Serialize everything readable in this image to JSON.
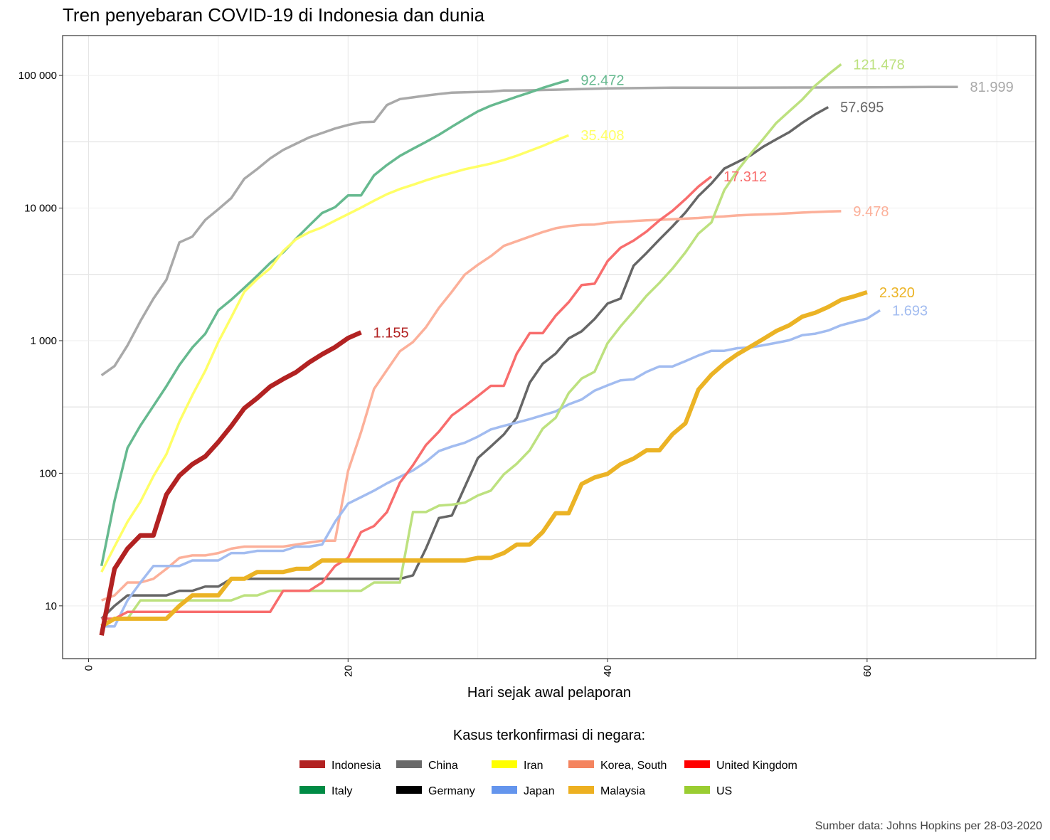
{
  "chart_data": {
    "type": "line",
    "title": "Tren penyebaran COVID-19 di Indonesia dan dunia",
    "xlabel": "Hari sejak awal pelaporan",
    "ylabel": "",
    "xlim": [
      -2,
      73
    ],
    "ylim": [
      4,
      200000
    ],
    "y_scale": "log",
    "grid": true,
    "x_ticks": [
      0,
      20,
      40,
      60
    ],
    "x_tick_labels": [
      "0",
      "20",
      "40",
      "60"
    ],
    "y_ticks": [
      10,
      100,
      1000,
      10000,
      100000
    ],
    "y_tick_labels": [
      "10",
      "100",
      "1 000",
      "10 000",
      "100 000"
    ],
    "legend_title": "Kasus terkonfirmasi di negara:",
    "legend_position": "bottom",
    "caption": "Sumber data: Johns Hopkins per 28-03-2020",
    "legend": [
      {
        "name": "Indonesia",
        "color": "#B22222"
      },
      {
        "name": "China",
        "color": "#696969"
      },
      {
        "name": "Iran",
        "color": "#FFFF00"
      },
      {
        "name": "Korea, South",
        "color": "#F4845F"
      },
      {
        "name": "United Kingdom",
        "color": "#FF0000"
      },
      {
        "name": "Italy",
        "color": "#008B45"
      },
      {
        "name": "Germany",
        "color": "#000000"
      },
      {
        "name": "Japan",
        "color": "#6495ED"
      },
      {
        "name": "Malaysia",
        "color": "#EDB021"
      },
      {
        "name": "US",
        "color": "#9ACD32"
      }
    ],
    "series": [
      {
        "name": "China",
        "color": "#a9a9a9",
        "width": 3.5,
        "end_label": "81.999",
        "x": [
          1,
          2,
          3,
          4,
          5,
          6,
          7,
          8,
          9,
          10,
          11,
          12,
          13,
          14,
          15,
          16,
          17,
          18,
          19,
          20,
          21,
          22,
          23,
          24,
          25,
          26,
          27,
          28,
          29,
          30,
          31,
          32,
          33,
          34,
          35,
          36,
          37,
          38,
          40,
          45,
          50,
          55,
          60,
          65,
          67
        ],
        "y": [
          548,
          643,
          920,
          1406,
          2075,
          2877,
          5509,
          6087,
          8141,
          9802,
          11891,
          16630,
          19716,
          23707,
          27440,
          30587,
          34110,
          36814,
          39829,
          42354,
          44386,
          44759,
          59895,
          66358,
          68413,
          70513,
          72434,
          74211,
          74619,
          75077,
          75550,
          77001,
          77022,
          77241,
          77754,
          78166,
          78600,
          78928,
          79932,
          80860,
          80921,
          81151,
          81439,
          81897,
          81999
        ]
      },
      {
        "name": "Italy",
        "color": "#66b98f",
        "width": 3.5,
        "end_label": "92.472",
        "x": [
          1,
          2,
          3,
          4,
          5,
          6,
          7,
          8,
          9,
          10,
          11,
          12,
          13,
          14,
          15,
          16,
          17,
          18,
          19,
          20,
          21,
          22,
          23,
          24,
          25,
          26,
          27,
          28,
          29,
          30,
          31,
          32,
          33,
          34,
          35,
          36,
          37
        ],
        "y": [
          20,
          62,
          155,
          229,
          322,
          453,
          655,
          888,
          1128,
          1694,
          2036,
          2502,
          3089,
          3858,
          4636,
          5883,
          7375,
          9172,
          10149,
          12462,
          12462,
          17660,
          21157,
          24747,
          27980,
          31506,
          35713,
          41035,
          47021,
          53578,
          59138,
          63927,
          69176,
          74386,
          80589,
          86498,
          92472
        ]
      },
      {
        "name": "Iran",
        "color": "#ffff66",
        "width": 3.5,
        "end_label": "35.408",
        "x": [
          1,
          2,
          3,
          4,
          5,
          6,
          7,
          8,
          9,
          10,
          11,
          12,
          13,
          14,
          15,
          16,
          17,
          18,
          19,
          20,
          21,
          22,
          23,
          24,
          25,
          26,
          27,
          28,
          29,
          30,
          31,
          32,
          33,
          34,
          35,
          36,
          37
        ],
        "y": [
          18,
          28,
          43,
          61,
          95,
          139,
          245,
          388,
          593,
          978,
          1501,
          2336,
          2922,
          3513,
          4747,
          5823,
          6566,
          7161,
          8042,
          9000,
          10075,
          11364,
          12729,
          13938,
          14991,
          16169,
          17361,
          18407,
          19644,
          20610,
          21638,
          23049,
          24811,
          27017,
          29406,
          32332,
          35408
        ]
      },
      {
        "name": "Germany",
        "color": "#666666",
        "width": 3.5,
        "end_label": "57.695",
        "x": [
          1,
          2,
          3,
          4,
          5,
          6,
          7,
          8,
          9,
          10,
          11,
          12,
          13,
          14,
          15,
          16,
          17,
          18,
          19,
          20,
          21,
          22,
          23,
          24,
          25,
          26,
          27,
          28,
          29,
          30,
          31,
          32,
          33,
          34,
          35,
          36,
          37,
          38,
          39,
          40,
          41,
          42,
          43,
          44,
          45,
          46,
          47,
          48,
          49,
          50,
          51,
          52,
          53,
          54,
          55,
          56,
          57
        ],
        "y": [
          8,
          10,
          12,
          12,
          12,
          12,
          13,
          13,
          14,
          14,
          16,
          16,
          16,
          16,
          16,
          16,
          16,
          16,
          16,
          16,
          16,
          16,
          16,
          16,
          17,
          27,
          46,
          48,
          79,
          130,
          159,
          196,
          262,
          482,
          670,
          799,
          1040,
          1176,
          1457,
          1908,
          2078,
          3675,
          4585,
          5795,
          7272,
          9257,
          12327,
          15320,
          19848,
          22213,
          24873,
          29056,
          32986,
          37323,
          43938,
          50871,
          57695
        ]
      },
      {
        "name": "Korea, South",
        "color": "#fcb09a",
        "width": 3.5,
        "end_label": "9.478",
        "x": [
          1,
          2,
          3,
          4,
          5,
          6,
          7,
          8,
          9,
          10,
          11,
          12,
          13,
          14,
          15,
          16,
          17,
          18,
          19,
          20,
          21,
          22,
          23,
          24,
          25,
          26,
          27,
          28,
          29,
          30,
          31,
          32,
          33,
          34,
          35,
          36,
          37,
          38,
          39,
          40,
          41,
          42,
          43,
          44,
          45,
          46,
          47,
          48,
          49,
          50,
          51,
          52,
          53,
          54,
          55,
          56,
          57,
          58
        ],
        "y": [
          11,
          12,
          15,
          15,
          16,
          19,
          23,
          24,
          24,
          25,
          27,
          28,
          28,
          28,
          28,
          29,
          30,
          31,
          31,
          104,
          204,
          433,
          602,
          833,
          977,
          1261,
          1766,
          2337,
          3150,
          3736,
          4335,
          5186,
          5621,
          6088,
          6593,
          7041,
          7314,
          7478,
          7513,
          7755,
          7869,
          7979,
          8086,
          8162,
          8236,
          8320,
          8413,
          8565,
          8652,
          8799,
          8897,
          8961,
          9037,
          9137,
          9241,
          9332,
          9413,
          9478
        ]
      },
      {
        "name": "Japan",
        "color": "#a2bcf0",
        "width": 3.5,
        "end_label": "1.693",
        "x": [
          1,
          2,
          3,
          4,
          5,
          6,
          7,
          8,
          9,
          10,
          11,
          12,
          13,
          14,
          15,
          16,
          17,
          18,
          19,
          20,
          21,
          22,
          23,
          24,
          25,
          26,
          27,
          28,
          29,
          30,
          31,
          32,
          33,
          34,
          35,
          36,
          37,
          38,
          39,
          40,
          41,
          42,
          43,
          44,
          45,
          46,
          47,
          48,
          49,
          50,
          51,
          52,
          53,
          54,
          55,
          56,
          57,
          58,
          59,
          60,
          61
        ],
        "y": [
          7,
          7,
          11,
          15,
          20,
          20,
          20,
          22,
          22,
          22,
          25,
          25,
          26,
          26,
          26,
          28,
          28,
          29,
          43,
          59,
          66,
          74,
          84,
          94,
          105,
          122,
          147,
          159,
          170,
          189,
          214,
          228,
          241,
          256,
          274,
          293,
          331,
          360,
          420,
          461,
          502,
          511,
          581,
          639,
          639,
          701,
          773,
          839,
          839,
          878,
          889,
          924,
          963,
          1007,
          1101,
          1128,
          1193,
          1307,
          1387,
          1468,
          1693
        ]
      },
      {
        "name": "US",
        "color": "#bde17f",
        "width": 3.5,
        "end_label": "121.478",
        "x": [
          1,
          2,
          3,
          4,
          5,
          6,
          7,
          8,
          9,
          10,
          11,
          12,
          13,
          14,
          15,
          16,
          17,
          18,
          19,
          20,
          21,
          22,
          23,
          24,
          25,
          26,
          27,
          28,
          29,
          30,
          31,
          32,
          33,
          34,
          35,
          36,
          37,
          38,
          39,
          40,
          41,
          42,
          43,
          44,
          45,
          46,
          47,
          48,
          49,
          50,
          51,
          52,
          53,
          54,
          55,
          56,
          57,
          58
        ],
        "y": [
          7,
          8,
          8,
          11,
          11,
          11,
          11,
          11,
          11,
          11,
          11,
          12,
          12,
          13,
          13,
          13,
          13,
          13,
          13,
          13,
          13,
          15,
          15,
          15,
          51,
          51,
          57,
          58,
          60,
          68,
          74,
          98,
          118,
          149,
          217,
          262,
          402,
          518,
          583,
          959,
          1281,
          1663,
          2179,
          2727,
          3499,
          4632,
          6421,
          7786,
          13680,
          19101,
          25493,
          33276,
          43847,
          53740,
          65778,
          83836,
          101657,
          121478
        ]
      },
      {
        "name": "United Kingdom",
        "color": "#f86d6d",
        "width": 3.5,
        "end_label": "17.312",
        "x": [
          1,
          2,
          3,
          4,
          5,
          6,
          7,
          8,
          9,
          10,
          11,
          12,
          13,
          14,
          15,
          16,
          17,
          18,
          19,
          20,
          21,
          22,
          23,
          24,
          25,
          26,
          27,
          28,
          29,
          30,
          31,
          32,
          33,
          34,
          35,
          36,
          37,
          38,
          39,
          40,
          41,
          42,
          43,
          44,
          45,
          46,
          47,
          48
        ],
        "y": [
          8,
          8,
          9,
          9,
          9,
          9,
          9,
          9,
          9,
          9,
          9,
          9,
          9,
          9,
          13,
          13,
          13,
          15,
          20,
          23,
          36,
          40,
          51,
          85,
          115,
          163,
          206,
          273,
          321,
          382,
          456,
          456,
          798,
          1140,
          1140,
          1543,
          1950,
          2626,
          2689,
          3983,
          5018,
          5683,
          6650,
          8077,
          9529,
          11658,
          14543,
          17312
        ]
      },
      {
        "name": "Malaysia",
        "color": "#ebb325",
        "width": 6,
        "end_label": "2.320",
        "x": [
          1,
          2,
          3,
          4,
          5,
          6,
          7,
          8,
          9,
          10,
          11,
          12,
          13,
          14,
          15,
          16,
          17,
          18,
          19,
          20,
          21,
          22,
          23,
          24,
          25,
          26,
          27,
          28,
          29,
          30,
          31,
          32,
          33,
          34,
          35,
          36,
          37,
          38,
          39,
          40,
          41,
          42,
          43,
          44,
          45,
          46,
          47,
          48,
          49,
          50,
          51,
          52,
          53,
          54,
          55,
          56,
          57,
          58,
          59,
          60
        ],
        "y": [
          7,
          8,
          8,
          8,
          8,
          8,
          10,
          12,
          12,
          12,
          16,
          16,
          18,
          18,
          18,
          19,
          19,
          22,
          22,
          22,
          22,
          22,
          22,
          22,
          22,
          22,
          22,
          22,
          22,
          23,
          23,
          25,
          29,
          29,
          36,
          50,
          50,
          83,
          93,
          99,
          117,
          129,
          149,
          149,
          197,
          238,
          428,
          553,
          673,
          790,
          900,
          1030,
          1183,
          1306,
          1518,
          1624,
          1796,
          2031,
          2161,
          2320
        ]
      },
      {
        "name": "Indonesia",
        "color": "#b22222",
        "width": 6.5,
        "end_label": "1.155",
        "x": [
          1,
          2,
          3,
          4,
          5,
          6,
          7,
          8,
          9,
          10,
          11,
          12,
          13,
          14,
          15,
          16,
          17,
          18,
          19,
          20,
          21
        ],
        "y": [
          6,
          19,
          27,
          34,
          34,
          69,
          96,
          117,
          134,
          172,
          227,
          309,
          369,
          450,
          514,
          579,
          686,
          790,
          893,
          1046,
          1155
        ]
      }
    ]
  }
}
